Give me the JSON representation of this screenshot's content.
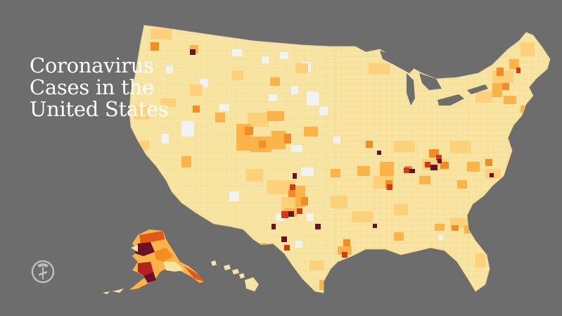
{
  "title": {
    "line1": "Coronavirus",
    "line2": "Cases in the",
    "line3": "United States"
  },
  "logo": {
    "icon": "nyt-logo-icon",
    "glyph": "𝕿"
  },
  "legend_colors": {
    "background": "#6d6d6d",
    "none": "#f2f2f2",
    "low": "#f7e4a3",
    "mid_low": "#fcd17a",
    "mid": "#fdb347",
    "mid_high": "#f58b23",
    "high": "#e4581a",
    "very_high": "#b22222",
    "extreme": "#6e0f2a"
  }
}
